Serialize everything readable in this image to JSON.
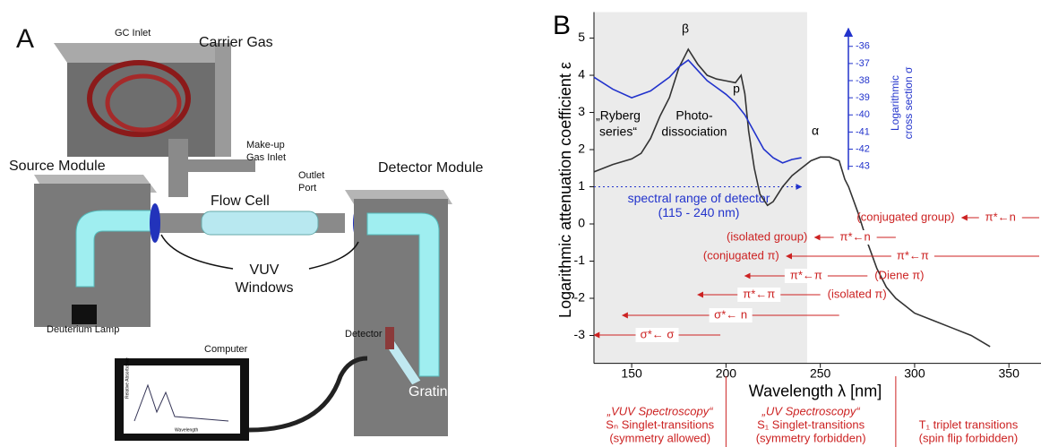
{
  "panel_a": {
    "label": "A",
    "gc_inlet": "GC Inlet",
    "carrier_gas": "Carrier Gas",
    "makeup_1": "Make-up",
    "makeup_2": "Gas Inlet",
    "source_module": "Source Module",
    "flow_cell": "Flow Cell",
    "outlet_1": "Outlet",
    "outlet_2": "Port",
    "detector_module": "Detector Module",
    "windows_1": "VUV",
    "windows_2": "Windows",
    "lamp": "Deuterium Lamp",
    "computer": "Computer",
    "detector": "Detector",
    "grating": "Grating",
    "screen_y": "Relative Absorbance",
    "screen_x": "Wavelength"
  },
  "chart_data": {
    "type": "line",
    "panel_label": "B",
    "xlabel": "Wavelength λ [nm]",
    "ylabel": "Logarithmic attenuation coefficient ε",
    "y2label": [
      "Logarithmic",
      "cross section σ"
    ],
    "xlim": [
      130,
      367
    ],
    "xticks": [
      150,
      200,
      250,
      300,
      350
    ],
    "ylim": [
      -3.75,
      5.7
    ],
    "yticks": [
      -3,
      -2,
      -1,
      0,
      1,
      2,
      3,
      4,
      5
    ],
    "y2lim": [
      -54.5,
      -34.0
    ],
    "y2ticks": [
      -36,
      -37,
      -38,
      -39,
      -40,
      -41,
      -42,
      -43
    ],
    "shaded_range": [
      130,
      243
    ],
    "series": [
      {
        "color": "#333333",
        "x": [
          130,
          140,
          150,
          155,
          160,
          165,
          170,
          175,
          180,
          185,
          190,
          195,
          200,
          205,
          208,
          210,
          212,
          215,
          218,
          222,
          225,
          230,
          235,
          240,
          245,
          250,
          255,
          260,
          263,
          265,
          270,
          275,
          280,
          285,
          290,
          295,
          300,
          310,
          320,
          330,
          340
        ],
        "values": [
          1.4,
          1.6,
          1.75,
          1.9,
          2.3,
          2.9,
          3.4,
          4.2,
          4.7,
          4.3,
          4.0,
          3.9,
          3.85,
          3.8,
          4.0,
          3.5,
          2.5,
          1.5,
          0.8,
          0.5,
          0.6,
          1.0,
          1.3,
          1.5,
          1.7,
          1.8,
          1.8,
          1.7,
          1.2,
          1.0,
          0.3,
          -0.5,
          -1.2,
          -1.7,
          -2.0,
          -2.2,
          -2.4,
          -2.6,
          -2.8,
          -3.0,
          -3.3
        ]
      },
      {
        "color": "#2233cc",
        "axis": "y2",
        "x": [
          130,
          140,
          150,
          160,
          170,
          175,
          180,
          185,
          190,
          195,
          200,
          205,
          210,
          215,
          220,
          225,
          230,
          235,
          240
        ],
        "values": [
          -37.8,
          -38.5,
          -39.0,
          -38.6,
          -37.8,
          -37.2,
          -36.8,
          -37.4,
          -38.0,
          -38.4,
          -38.8,
          -39.3,
          -40.0,
          -41.0,
          -42.0,
          -42.5,
          -42.8,
          -42.6,
          -42.5
        ]
      }
    ],
    "peak_labels": [
      "β",
      "p",
      "α"
    ],
    "ryberg": [
      "„Ryberg",
      "series“"
    ],
    "photo": [
      "Photo-",
      "dissociation"
    ],
    "detector_range": {
      "text": [
        "spectral range of detector",
        "(115 - 240 nm)"
      ],
      "range": [
        130,
        240
      ],
      "level": 1
    },
    "transitions": [
      {
        "label": "π*←n",
        "group": "(conjugated group)",
        "range": [
          325,
          367
        ]
      },
      {
        "label": "π*←n",
        "group": "(isolated group)",
        "range": [
          247,
          290
        ]
      },
      {
        "label": "π*←π",
        "group": "(conjugated π)",
        "range": [
          232,
          367
        ]
      },
      {
        "label": "π*←π",
        "group": "(Diene π)",
        "range": [
          210,
          275
        ]
      },
      {
        "label": "π*←π",
        "group": "(isolated π)",
        "range": [
          185,
          250
        ]
      },
      {
        "label": "σ*← n",
        "range": [
          145,
          260
        ]
      },
      {
        "label": "σ*← σ",
        "range": [
          130,
          197
        ]
      }
    ],
    "regions": [
      [
        "„VUV Spectroscopy“",
        "Sₙ Singlet-transitions",
        "(symmetry allowed)"
      ],
      [
        "„UV Spectroscopy“",
        "S₁ Singlet-transitions",
        "(symmetry forbidden)"
      ],
      [
        "T₁ triplet transitions",
        "(spin flip forbidden)"
      ]
    ],
    "region_bounds": [
      200,
      290
    ]
  }
}
